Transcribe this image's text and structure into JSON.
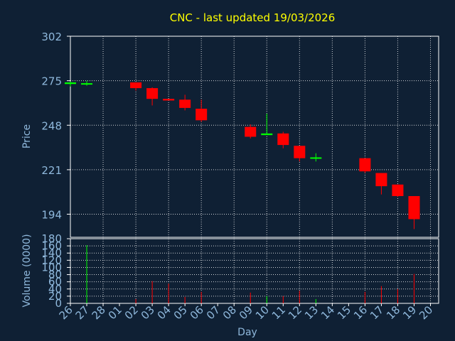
{
  "chart_data": [
    {
      "type": "candlestick",
      "title": "CNC - last updated 19/03/2026",
      "ylabel": "Price",
      "xlabel": "Day",
      "ylim": [
        180,
        302
      ],
      "yticks": [
        302,
        275,
        248,
        221,
        194
      ],
      "categories": [
        "26",
        "27",
        "28",
        "01",
        "02",
        "03",
        "04",
        "05",
        "06",
        "07",
        "08",
        "09",
        "10",
        "11",
        "12",
        "13",
        "14",
        "15",
        "16",
        "17",
        "18",
        "19",
        "20"
      ],
      "grid": true,
      "colors": {
        "up": "#00ff00",
        "down": "#ff0000",
        "title": "#ffff00",
        "axis_text": "#8fb8dc",
        "grid": "#ffffff",
        "background": "#0f2034",
        "frame": "#ffffff"
      },
      "candles": [
        {
          "day": "26",
          "open": 273,
          "close": 274,
          "high": 274.5,
          "low": 271.5
        },
        {
          "day": "27",
          "open": 273,
          "close": 273.5,
          "high": 275,
          "low": 272
        },
        {
          "day": "02",
          "open": 274,
          "close": 270.5,
          "high": 274,
          "low": 269
        },
        {
          "day": "03",
          "open": 270.5,
          "close": 264,
          "high": 271,
          "low": 260
        },
        {
          "day": "04",
          "open": 264,
          "close": 263,
          "high": 264,
          "low": 263
        },
        {
          "day": "05",
          "open": 263.5,
          "close": 258.5,
          "high": 266.5,
          "low": 257
        },
        {
          "day": "06",
          "open": 258,
          "close": 251,
          "high": 263.5,
          "low": 250
        },
        {
          "day": "09",
          "open": 247,
          "close": 241,
          "high": 248.5,
          "low": 240
        },
        {
          "day": "10",
          "open": 242,
          "close": 243,
          "high": 255,
          "low": 242
        },
        {
          "day": "11",
          "open": 243,
          "close": 236,
          "high": 244,
          "low": 234
        },
        {
          "day": "12",
          "open": 235.5,
          "close": 228,
          "high": 235.5,
          "low": 226
        },
        {
          "day": "13",
          "open": 228,
          "close": 228.5,
          "high": 231,
          "low": 226
        },
        {
          "day": "16",
          "open": 228,
          "close": 220,
          "high": 228,
          "low": 219
        },
        {
          "day": "17",
          "open": 219,
          "close": 211,
          "high": 219,
          "low": 206
        },
        {
          "day": "18",
          "open": 212,
          "close": 205,
          "high": 212,
          "low": 204.5
        },
        {
          "day": "19",
          "open": 205,
          "close": 191,
          "high": 205,
          "low": 185
        }
      ]
    },
    {
      "type": "bar",
      "ylabel": "Volume (0000)",
      "ylim": [
        0,
        180
      ],
      "yticks": [
        180,
        160,
        140,
        120,
        100,
        80,
        60,
        40,
        20,
        0
      ],
      "volumes": [
        {
          "day": "27",
          "value": 162,
          "direction": "up"
        },
        {
          "day": "02",
          "value": 12,
          "direction": "down"
        },
        {
          "day": "03",
          "value": 62,
          "direction": "down"
        },
        {
          "day": "04",
          "value": 55,
          "direction": "down"
        },
        {
          "day": "05",
          "value": 18,
          "direction": "down"
        },
        {
          "day": "06",
          "value": 32,
          "direction": "down"
        },
        {
          "day": "09",
          "value": 30,
          "direction": "down"
        },
        {
          "day": "10",
          "value": 20,
          "direction": "up"
        },
        {
          "day": "11",
          "value": 20,
          "direction": "down"
        },
        {
          "day": "12",
          "value": 35,
          "direction": "down"
        },
        {
          "day": "13",
          "value": 12,
          "direction": "up"
        },
        {
          "day": "16",
          "value": 32,
          "direction": "down"
        },
        {
          "day": "17",
          "value": 48,
          "direction": "down"
        },
        {
          "day": "18",
          "value": 40,
          "direction": "down"
        },
        {
          "day": "19",
          "value": 82,
          "direction": "down"
        }
      ]
    }
  ]
}
